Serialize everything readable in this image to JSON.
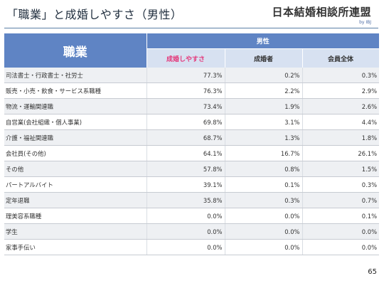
{
  "header": {
    "title": "「職業」と成婚しやすさ（男性）",
    "logo_main": "日本結婚相談所連盟",
    "logo_sub": "by IBJ"
  },
  "table": {
    "occupation_header": "職業",
    "group_header": "男性",
    "columns": [
      "成婚しやすさ",
      "成婚者",
      "会員全体"
    ],
    "highlight_color": "#e4377a",
    "header_color": "#5f84c4",
    "rows": [
      {
        "label": "司法書士・行政書士・社労士",
        "values": [
          "77.3%",
          "0.2%",
          "0.3%"
        ]
      },
      {
        "label": "販売・小売・飲食・サービス系職種",
        "values": [
          "76.3%",
          "2.2%",
          "2.9%"
        ]
      },
      {
        "label": "物流・運輸関連職",
        "values": [
          "73.4%",
          "1.9%",
          "2.6%"
        ]
      },
      {
        "label": "自営業(会社組織・個人事業)",
        "values": [
          "69.8%",
          "3.1%",
          "4.4%"
        ]
      },
      {
        "label": "介護・福祉関連職",
        "values": [
          "68.7%",
          "1.3%",
          "1.8%"
        ]
      },
      {
        "label": "会社員(その他)",
        "values": [
          "64.1%",
          "16.7%",
          "26.1%"
        ]
      },
      {
        "label": "その他",
        "values": [
          "57.8%",
          "0.8%",
          "1.5%"
        ]
      },
      {
        "label": "パートアルバイト",
        "values": [
          "39.1%",
          "0.1%",
          "0.3%"
        ]
      },
      {
        "label": "定年退職",
        "values": [
          "35.8%",
          "0.3%",
          "0.7%"
        ]
      },
      {
        "label": "理美容系職種",
        "values": [
          "0.0%",
          "0.0%",
          "0.1%"
        ]
      },
      {
        "label": "学生",
        "values": [
          "0.0%",
          "0.0%",
          "0.0%"
        ]
      },
      {
        "label": "家事手伝い",
        "values": [
          "0.0%",
          "0.0%",
          "0.0%"
        ]
      }
    ]
  },
  "footer": {
    "page_number": "65"
  }
}
